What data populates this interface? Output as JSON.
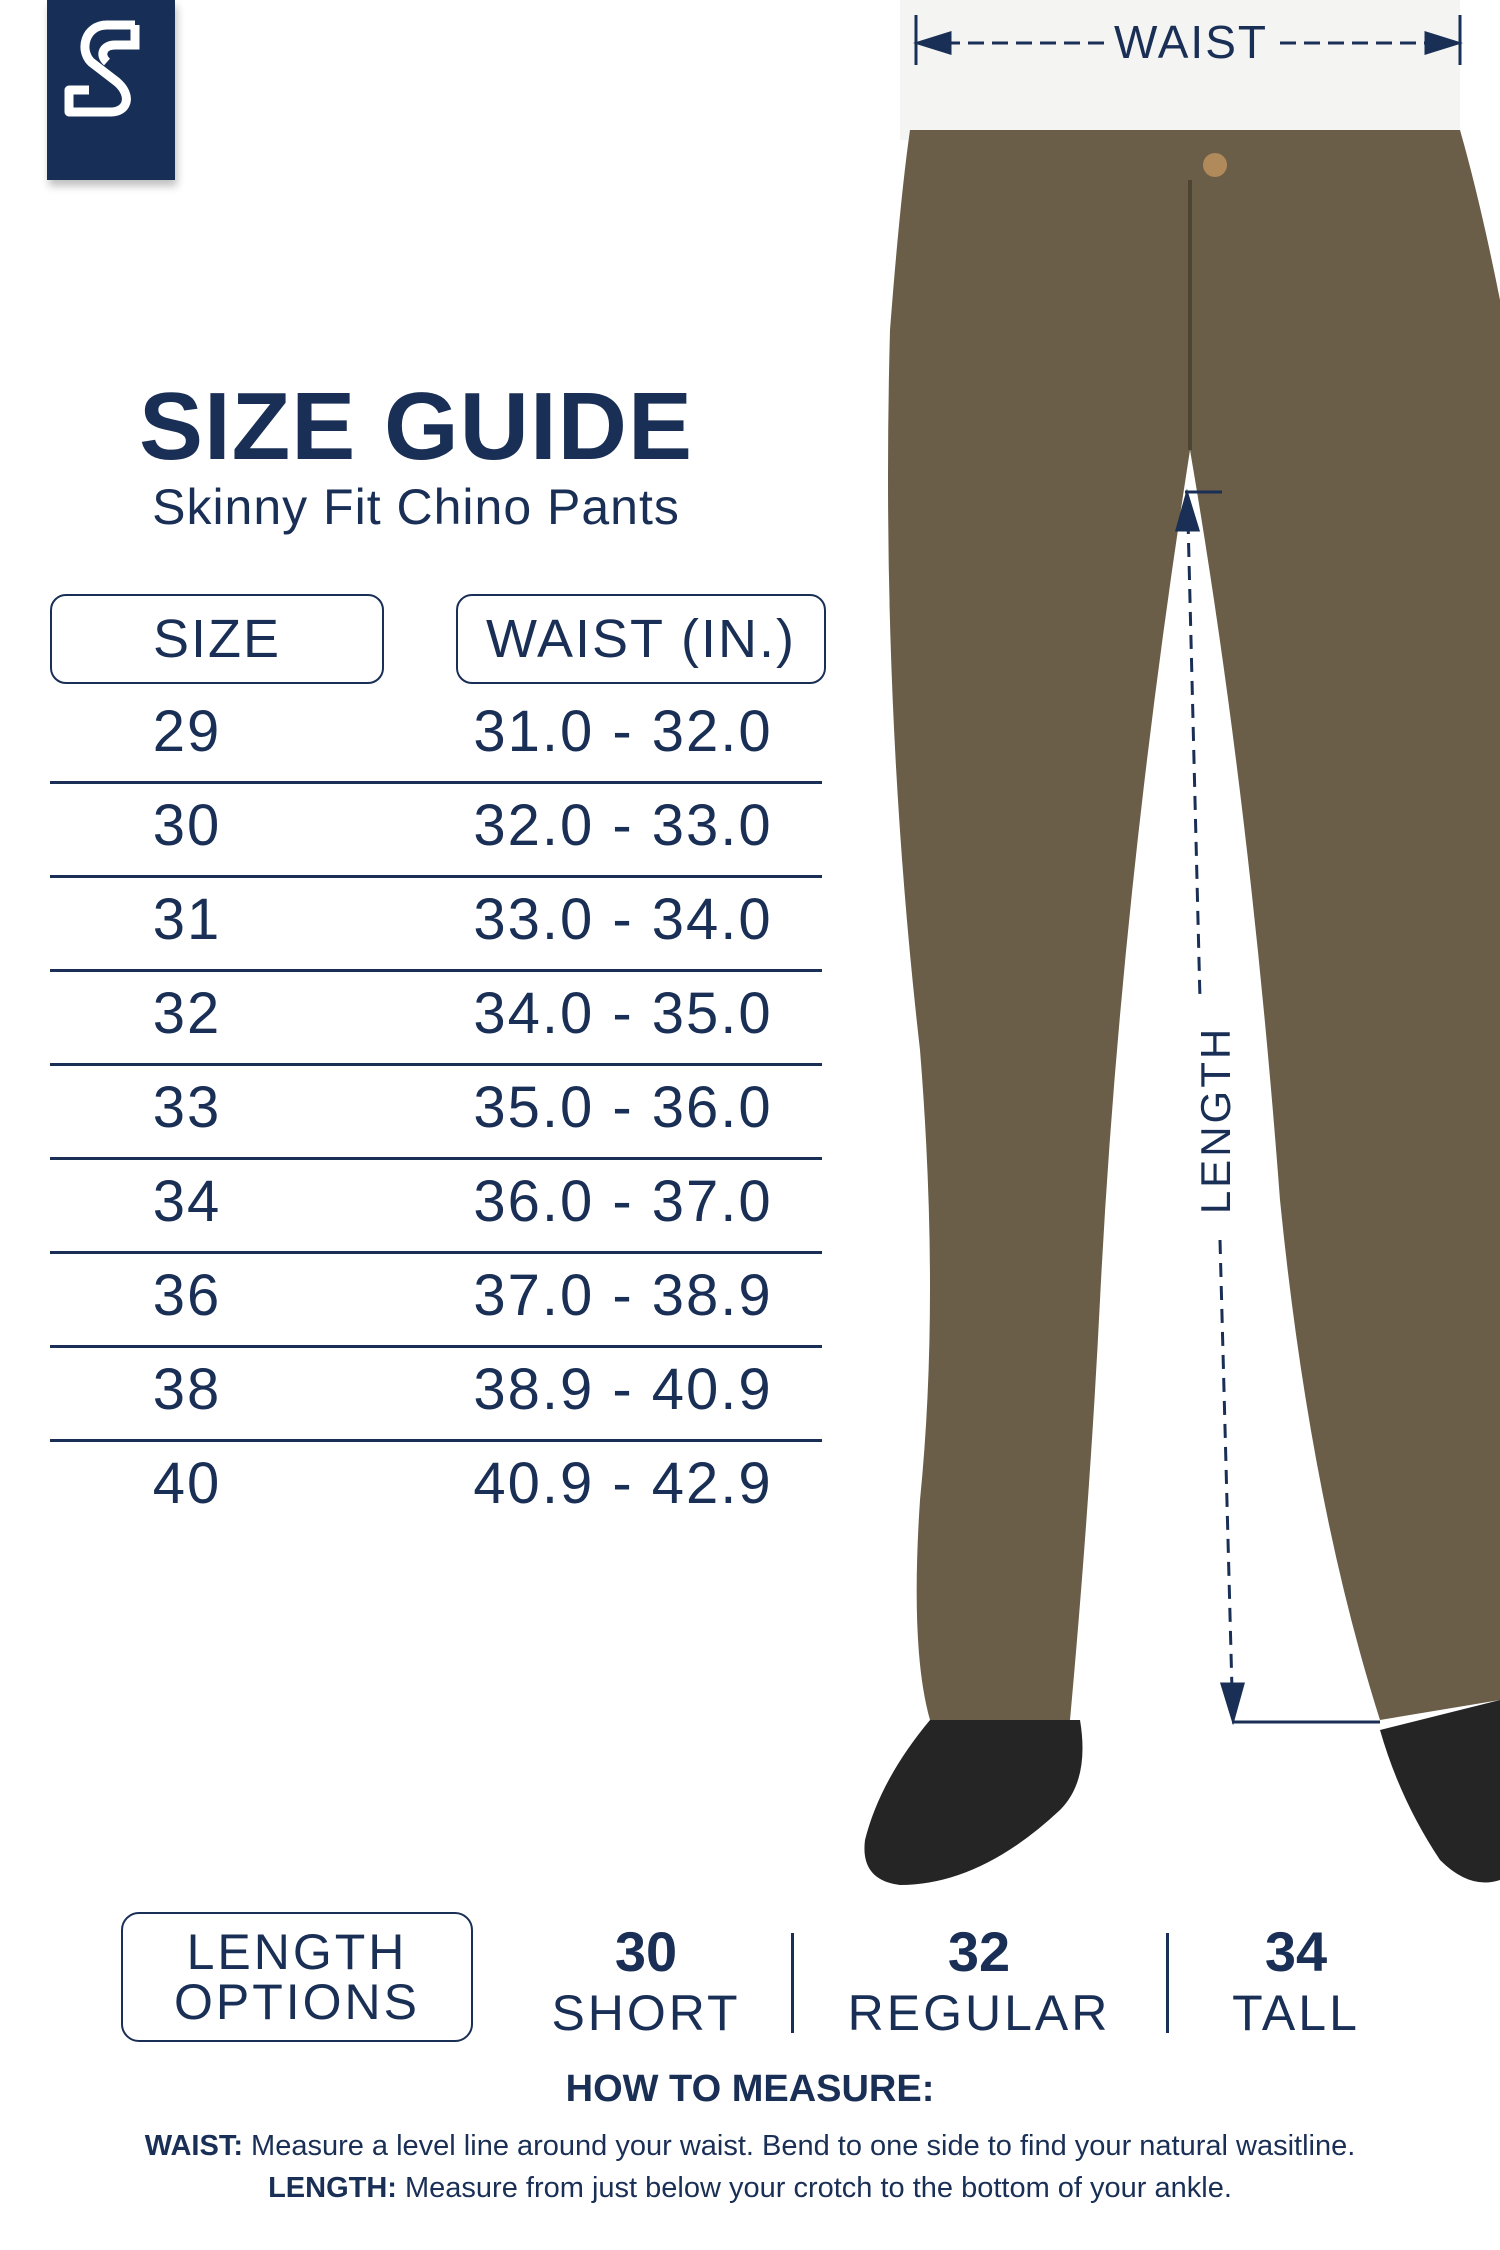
{
  "brand": {
    "logo_letter": "S",
    "color": "#172f56"
  },
  "header": {
    "title": "SIZE GUIDE",
    "subtitle": "Skinny Fit Chino Pants"
  },
  "table": {
    "columns": [
      "SIZE",
      "WAIST (IN.)"
    ],
    "rows": [
      {
        "size": "29",
        "waist": "31.0 - 32.0"
      },
      {
        "size": "30",
        "waist": "32.0 - 33.0"
      },
      {
        "size": "31",
        "waist": "33.0 - 34.0"
      },
      {
        "size": "32",
        "waist": "34.0 - 35.0"
      },
      {
        "size": "33",
        "waist": "35.0 - 36.0"
      },
      {
        "size": "34",
        "waist": "36.0 - 37.0"
      },
      {
        "size": "36",
        "waist": "37.0 - 38.9"
      },
      {
        "size": "38",
        "waist": "38.9 - 40.9"
      },
      {
        "size": "40",
        "waist": "40.9 - 42.9"
      }
    ]
  },
  "diagram": {
    "waist_label": "WAIST",
    "length_label": "LENGTH",
    "pants_color": "#6b5e48"
  },
  "length_options": {
    "label_line1": "LENGTH",
    "label_line2": "OPTIONS",
    "options": [
      {
        "number": "30",
        "name": "SHORT"
      },
      {
        "number": "32",
        "name": "REGULAR"
      },
      {
        "number": "34",
        "name": "TALL"
      }
    ]
  },
  "how_to_measure": {
    "heading": "HOW TO MEASURE:",
    "waist_term": "WAIST:",
    "waist_text": " Measure a level line around your waist. Bend to one side to find your natural wasitline.",
    "length_term": "LENGTH:",
    "length_text": " Measure from just below your crotch to the bottom of your ankle."
  }
}
